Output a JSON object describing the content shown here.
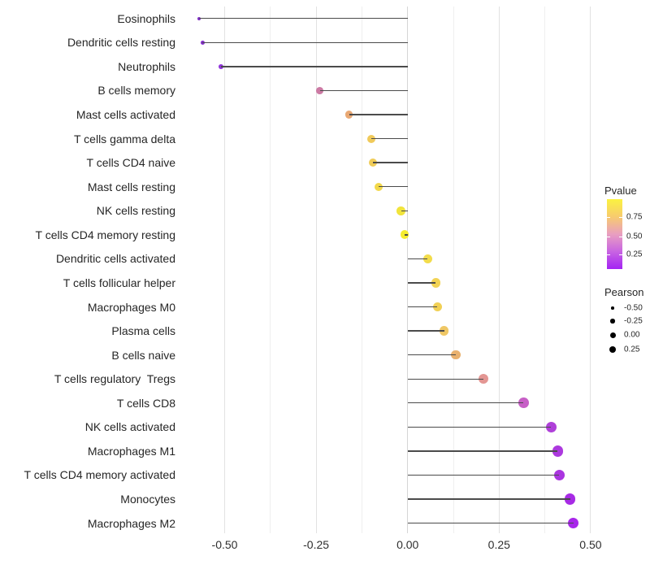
{
  "chart_data": {
    "type": "lollipop",
    "title": "",
    "xlabel": "",
    "ylabel": "",
    "categories": [
      "Eosinophils",
      "Dendritic cells resting",
      "Neutrophils",
      "B cells memory",
      "Mast cells activated",
      "T cells gamma delta",
      "T cells CD4 naive",
      "Mast cells resting",
      "NK cells resting",
      "T cells CD4 memory resting",
      "Dendritic cells activated",
      "T cells follicular helper",
      "Macrophages M0",
      "Plasma cells",
      "B cells naive",
      "T cells regulatory  Tregs",
      "T cells CD8",
      "NK cells activated",
      "Macrophages M1",
      "T cells CD4 memory activated",
      "Monocytes",
      "Macrophages M2"
    ],
    "values": [
      -0.57,
      -0.56,
      -0.51,
      -0.24,
      -0.16,
      -0.1,
      -0.095,
      -0.08,
      -0.018,
      -0.008,
      0.055,
      0.077,
      0.081,
      0.1,
      0.132,
      0.207,
      0.317,
      0.392,
      0.41,
      0.414,
      0.444,
      0.453
    ],
    "point_colors": [
      "#7F2DC6",
      "#8530CB",
      "#9136DB",
      "#CC7AA4",
      "#E9A873",
      "#F0CA5A",
      "#F0CC58",
      "#F2D84A",
      "#F1E43C",
      "#F5EC2F",
      "#F2DC4B",
      "#F2D355",
      "#F1D055",
      "#EFC765",
      "#E9B16E",
      "#E39693",
      "#C75FC6",
      "#AF40D9",
      "#AC39DE",
      "#AA35E0",
      "#A72BE5",
      "#A826EA"
    ],
    "xlim": [
      -0.62,
      0.5
    ],
    "x_ticks": [
      {
        "v": -0.5,
        "label": "-0.50"
      },
      {
        "v": -0.25,
        "label": "-0.25"
      },
      {
        "v": 0.0,
        "label": "0.00"
      },
      {
        "v": 0.25,
        "label": "0.25"
      },
      {
        "v": 0.5,
        "label": "0.50"
      }
    ],
    "x_minor_ticks": [
      -0.375,
      -0.125,
      0.125,
      0.375
    ],
    "grid": "major-and-minor",
    "legend_position": "right",
    "legend_pvalue": {
      "title": "Pvalue",
      "tick_labels": [
        "0.75",
        "0.50",
        "0.25"
      ],
      "gradient_stops": [
        "#FBF340",
        "#F7CB6E",
        "#E99FC0",
        "#C864E2",
        "#A423F3"
      ]
    },
    "legend_pearson": {
      "title": "Pearson",
      "labels": [
        "-0.50",
        "-0.25",
        "0.00",
        "0.25"
      ],
      "dot_color": "#000000"
    },
    "colors": {
      "background": "#ffffff",
      "stem": "#4b4b4b",
      "grid_major": "#e2e2e2",
      "grid_minor": "#efefef",
      "zero_line": "#d6d6d6",
      "axis_text": "#2e2e2e",
      "label_text": "#262626"
    }
  }
}
